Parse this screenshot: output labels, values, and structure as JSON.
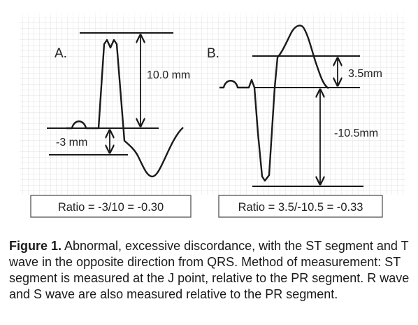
{
  "panels": {
    "a": {
      "label": "A.",
      "r_measure": "10.0 mm",
      "st_measure": "-3 mm",
      "ratio": "Ratio = -3/10 = -0.30"
    },
    "b": {
      "label": "B.",
      "st_measure": "3.5mm",
      "s_measure": "-10.5mm",
      "ratio": "Ratio = 3.5/-10.5 = -0.33"
    }
  },
  "caption": {
    "heading": "Figure 1.",
    "text": " Abnormal, excessive discordance, with the ST segment and T wave in the opposite direction from QRS. Method of measurement: ST segment is measured at the J point, relative to the PR segment. R wave and S wave are also measured relative to the PR segment."
  },
  "colors": {
    "grid": "#dedede",
    "trace": "#1a1a1a",
    "box_border": "#555555"
  }
}
